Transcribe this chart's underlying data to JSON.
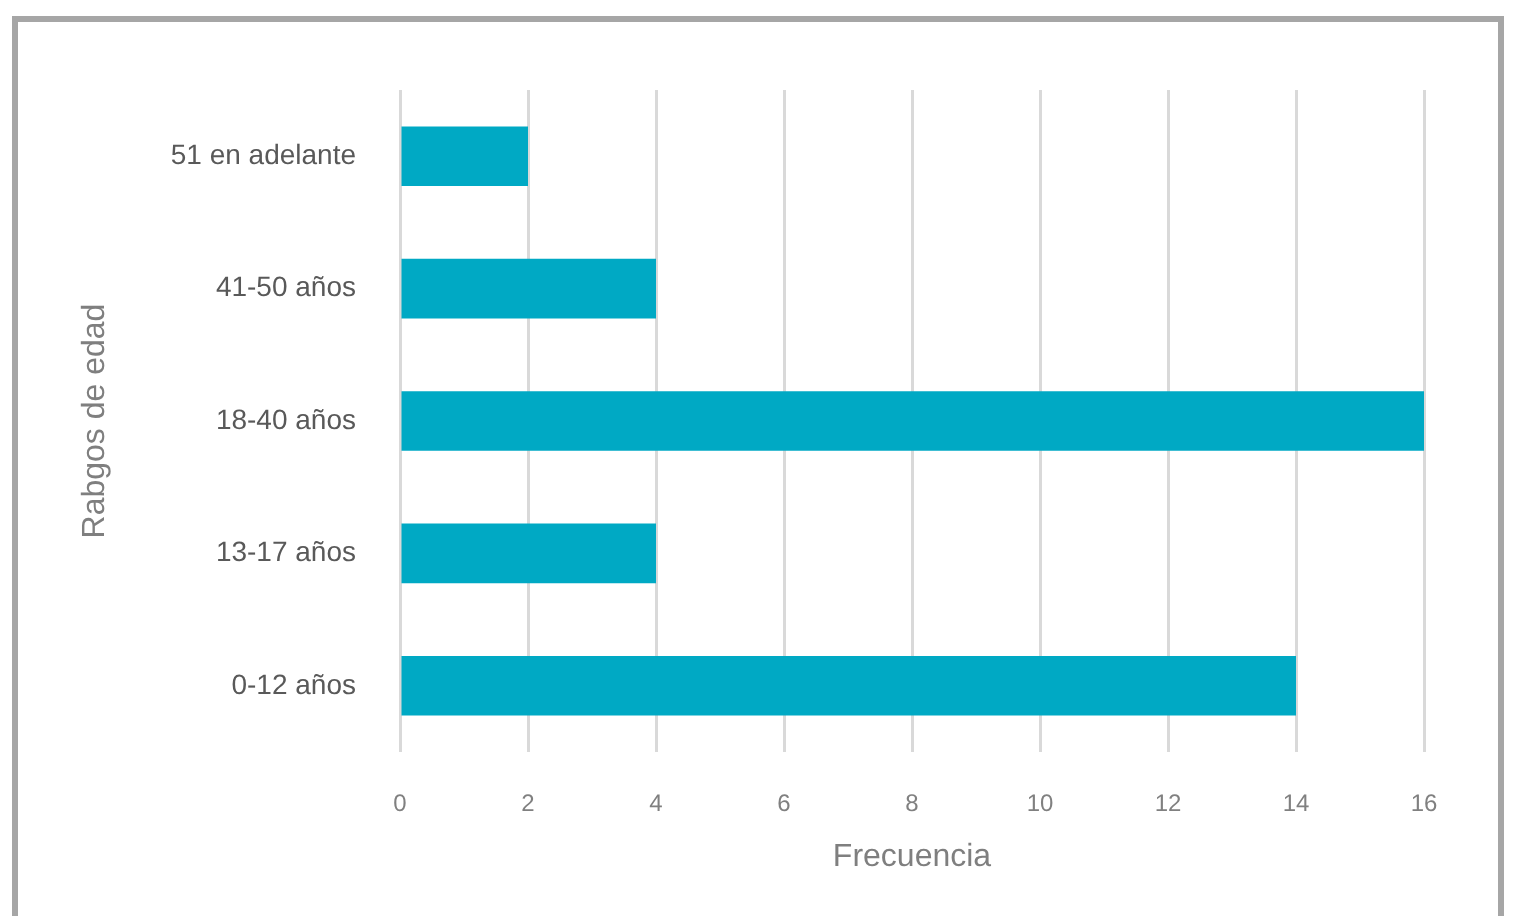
{
  "chart_data": {
    "type": "bar",
    "orientation": "horizontal",
    "categories": [
      "51 en adelante",
      "41-50 años",
      "18-40 años",
      "13-17 años",
      "0-12 años"
    ],
    "values": [
      2,
      4,
      16,
      4,
      14
    ],
    "color": "#00a9c4",
    "xlabel": "Frecuencia",
    "ylabel": "Rabgos de edad",
    "xlim": [
      0,
      16
    ],
    "xticks": [
      0,
      2,
      4,
      6,
      8,
      10,
      12,
      14,
      16
    ],
    "grid": "x"
  }
}
